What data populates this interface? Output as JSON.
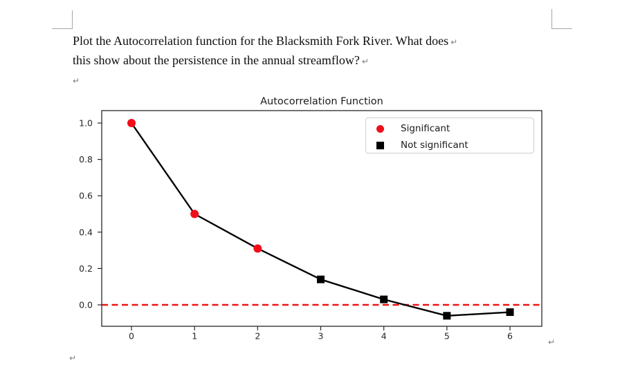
{
  "document": {
    "question_line1": "Plot the Autocorrelation function for the Blacksmith Fork River. What does",
    "question_line2": "this show about the persistence in the annual streamflow?",
    "line_break_mark": "↵",
    "paragraph_mark": "↵"
  },
  "chart_data": {
    "type": "line",
    "title": "Autocorrelation Function",
    "x": [
      0,
      1,
      2,
      3,
      4,
      5,
      6
    ],
    "y": [
      1.0,
      0.5,
      0.31,
      0.14,
      0.03,
      -0.06,
      -0.04
    ],
    "point_significant": [
      true,
      true,
      true,
      false,
      false,
      false,
      false
    ],
    "xticks": [
      "0",
      "1",
      "2",
      "3",
      "4",
      "5",
      "6"
    ],
    "yticks": [
      "1.0",
      "0.8",
      "0.6",
      "0.4",
      "0.2",
      "0.0"
    ],
    "ytick_values": [
      1.0,
      0.8,
      0.6,
      0.4,
      0.2,
      0.0
    ],
    "xlim": [
      -0.47,
      6.5
    ],
    "ylim": [
      -0.12,
      1.07
    ],
    "grid": false,
    "zero_line": {
      "y": 0.0,
      "style": "dashed"
    },
    "legend": {
      "position": "upper right",
      "items": [
        {
          "label": "Significant",
          "marker": "circle",
          "color": "#f10d19"
        },
        {
          "label": "Not significant",
          "marker": "square",
          "color": "#000000"
        }
      ]
    },
    "colors": {
      "line": "#000000",
      "significant": "#f10d19",
      "not_significant": "#000000",
      "zero_line": "#ef1212",
      "spine": "#262626",
      "tick_label": "#262626"
    }
  }
}
